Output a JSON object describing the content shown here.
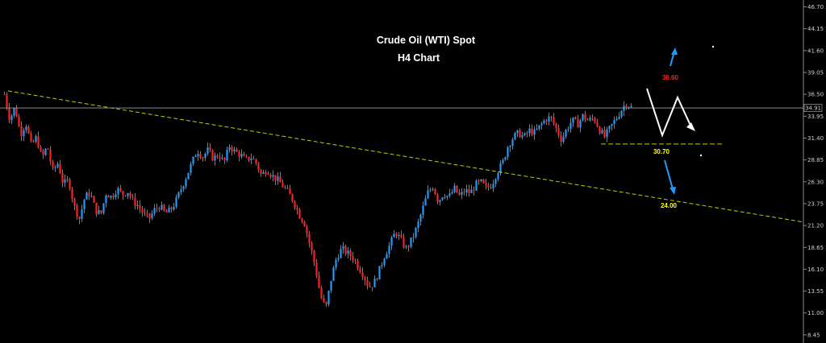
{
  "chart_data": {
    "type": "candlestick",
    "title": "Crude Oil (WTI) Spot",
    "subtitle": "H4 Chart",
    "ylim": [
      7.5,
      47.5
    ],
    "yticks": [
      "46.70",
      "44.15",
      "41.60",
      "39.05",
      "36.50",
      "33.95",
      "31.40",
      "28.85",
      "26.30",
      "23.75",
      "21.20",
      "18.65",
      "16.10",
      "13.55",
      "11.00",
      "8.45"
    ],
    "current_price": "34.91",
    "close_path": [
      36.5,
      33.6,
      35.0,
      31.8,
      33.2,
      30.5,
      31.5,
      29.0,
      30.5,
      27.5,
      28.5,
      26.0,
      26.5,
      23.5,
      22.0,
      24.5,
      25.0,
      23.0,
      22.5,
      25.0,
      24.5,
      25.5,
      24.8,
      25.2,
      24.0,
      23.5,
      22.5,
      22.0,
      23.0,
      23.5,
      22.6,
      23.0,
      24.0,
      25.5,
      27.0,
      28.5,
      30.0,
      29.2,
      30.0,
      29.0,
      29.5,
      28.5,
      30.5,
      29.8,
      29.5,
      28.8,
      29.2,
      28.5,
      27.0,
      27.8,
      27.0,
      26.5,
      25.8,
      25.0,
      24.0,
      22.5,
      21.5,
      19.0,
      16.5,
      13.0,
      11.5,
      15.0,
      17.5,
      18.5,
      18.0,
      17.5,
      16.5,
      15.5,
      14.0,
      14.5,
      16.0,
      17.8,
      19.0,
      20.5,
      19.5,
      18.5,
      19.5,
      21.0,
      23.0,
      25.0,
      25.8,
      24.0,
      25.0,
      24.5,
      25.5,
      24.6,
      25.3,
      25.0,
      26.0,
      26.2,
      25.5,
      26.0,
      27.5,
      28.5,
      30.5,
      31.5,
      32.0,
      31.5,
      32.3,
      32.0,
      32.8,
      33.6,
      33.8,
      32.5,
      31.2,
      32.5,
      33.5,
      33.0,
      34.0,
      33.4,
      33.8,
      32.5,
      31.5,
      32.5,
      33.5,
      34.5,
      35.5,
      35.0
    ],
    "levels": [
      {
        "label": "36.60",
        "color": "#ff2020",
        "value": 36.6
      },
      {
        "label": "30.70",
        "color": "#ffff00",
        "value": 30.7
      },
      {
        "label": "24.00",
        "color": "#ffff00",
        "value": 24.0
      }
    ],
    "trendline": {
      "from": 36.9,
      "to": 21.6,
      "color": "#c8c800",
      "style": "dashed"
    },
    "colors": {
      "bull": "#1e9bff",
      "bear": "#ff2020",
      "wick": "#cfcfcf",
      "background": "#000000"
    },
    "grid": false,
    "legend": "none"
  }
}
